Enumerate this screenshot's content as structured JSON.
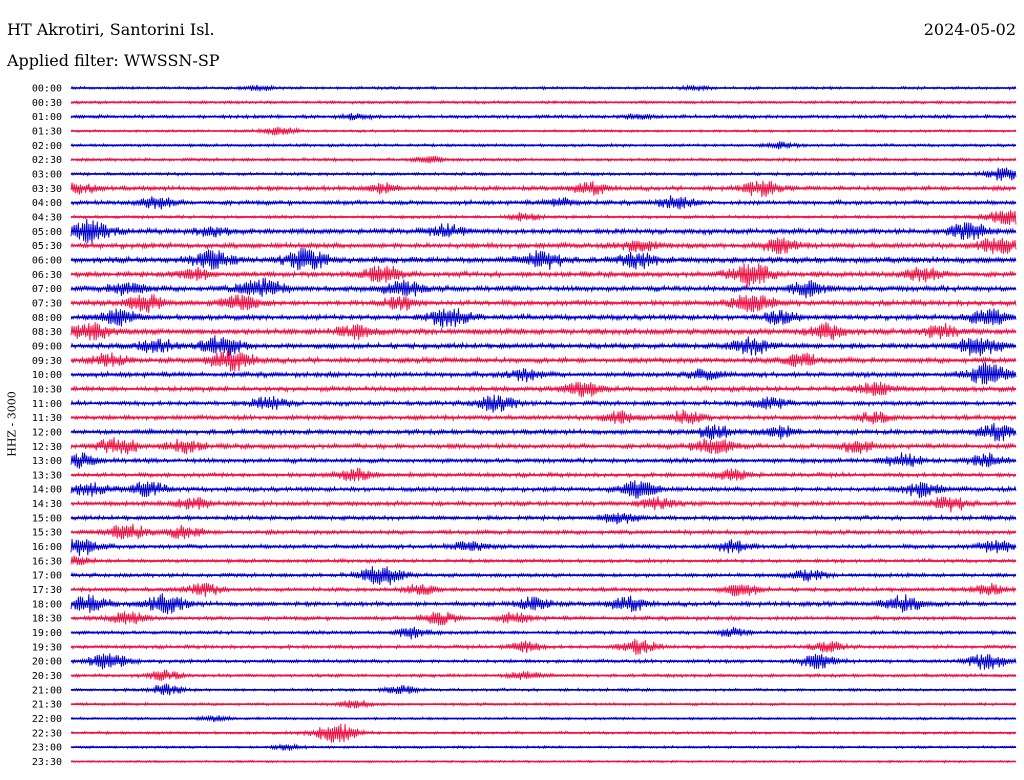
{
  "header": {
    "station": "HT Akrotiri, Santorini Isl.",
    "date": "2024-05-02",
    "filter": "Applied filter: WWSSN-SP"
  },
  "chart_data": {
    "type": "line",
    "title": "HT Akrotiri, Santorini Isl.",
    "ylabel": "HHZ - 3000",
    "xlabel": "",
    "colors": [
      "#0000cc",
      "#ee1144"
    ],
    "row_interval_minutes": 30,
    "rows": [
      {
        "label": "00:00",
        "amp": 1.6,
        "bursts": [
          [
            0.2,
            2.5
          ],
          [
            0.66,
            2.0
          ]
        ]
      },
      {
        "label": "00:30",
        "amp": 1.6,
        "bursts": []
      },
      {
        "label": "01:00",
        "amp": 2.0,
        "bursts": [
          [
            0.3,
            2.5
          ],
          [
            0.6,
            2.0
          ]
        ]
      },
      {
        "label": "01:30",
        "amp": 1.5,
        "bursts": [
          [
            0.22,
            4.0
          ]
        ]
      },
      {
        "label": "02:00",
        "amp": 1.6,
        "bursts": [
          [
            0.75,
            3.0
          ]
        ]
      },
      {
        "label": "02:30",
        "amp": 1.8,
        "bursts": [
          [
            0.38,
            3.0
          ]
        ]
      },
      {
        "label": "03:00",
        "amp": 1.8,
        "bursts": [
          [
            0.99,
            7.0
          ]
        ]
      },
      {
        "label": "03:30",
        "amp": 2.5,
        "bursts": [
          [
            0.01,
            5.0
          ],
          [
            0.33,
            5.0
          ],
          [
            0.55,
            6.0
          ],
          [
            0.73,
            7.0
          ]
        ]
      },
      {
        "label": "04:00",
        "amp": 2.5,
        "bursts": [
          [
            0.09,
            6.0
          ],
          [
            0.52,
            4.0
          ],
          [
            0.64,
            6.0
          ]
        ]
      },
      {
        "label": "04:30",
        "amp": 1.8,
        "bursts": [
          [
            0.48,
            4.0
          ],
          [
            0.99,
            8.0
          ]
        ]
      },
      {
        "label": "05:00",
        "amp": 3.0,
        "bursts": [
          [
            0.02,
            10.0
          ],
          [
            0.4,
            6.0
          ],
          [
            0.15,
            5.0
          ],
          [
            0.95,
            8.0
          ]
        ]
      },
      {
        "label": "05:30",
        "amp": 3.0,
        "bursts": [
          [
            0.6,
            6.0
          ],
          [
            0.75,
            7.0
          ],
          [
            0.98,
            8.0
          ]
        ]
      },
      {
        "label": "06:00",
        "amp": 3.5,
        "bursts": [
          [
            0.15,
            9.0
          ],
          [
            0.25,
            10.0
          ],
          [
            0.5,
            8.0
          ],
          [
            0.6,
            7.0
          ]
        ]
      },
      {
        "label": "06:30",
        "amp": 3.0,
        "bursts": [
          [
            0.13,
            6.0
          ],
          [
            0.33,
            8.0
          ],
          [
            0.72,
            11.0
          ],
          [
            0.9,
            7.0
          ]
        ]
      },
      {
        "label": "07:00",
        "amp": 3.2,
        "bursts": [
          [
            0.06,
            6.0
          ],
          [
            0.2,
            10.0
          ],
          [
            0.35,
            8.0
          ],
          [
            0.78,
            7.0
          ]
        ]
      },
      {
        "label": "07:30",
        "amp": 3.0,
        "bursts": [
          [
            0.08,
            8.0
          ],
          [
            0.18,
            7.0
          ],
          [
            0.35,
            6.0
          ],
          [
            0.72,
            9.0
          ]
        ]
      },
      {
        "label": "08:00",
        "amp": 3.0,
        "bursts": [
          [
            0.05,
            7.0
          ],
          [
            0.4,
            9.0
          ],
          [
            0.75,
            6.0
          ],
          [
            0.97,
            8.0
          ]
        ]
      },
      {
        "label": "08:30",
        "amp": 3.5,
        "bursts": [
          [
            0.02,
            8.0
          ],
          [
            0.3,
            6.0
          ],
          [
            0.8,
            7.0
          ],
          [
            0.92,
            6.0
          ]
        ]
      },
      {
        "label": "09:00",
        "amp": 3.0,
        "bursts": [
          [
            0.09,
            7.0
          ],
          [
            0.16,
            9.0
          ],
          [
            0.72,
            8.0
          ],
          [
            0.96,
            10.0
          ]
        ]
      },
      {
        "label": "09:30",
        "amp": 3.0,
        "bursts": [
          [
            0.04,
            6.0
          ],
          [
            0.17,
            10.0
          ],
          [
            0.77,
            7.0
          ]
        ]
      },
      {
        "label": "10:00",
        "amp": 2.8,
        "bursts": [
          [
            0.48,
            6.0
          ],
          [
            0.67,
            5.0
          ],
          [
            0.97,
            10.0
          ]
        ]
      },
      {
        "label": "10:30",
        "amp": 2.8,
        "bursts": [
          [
            0.54,
            7.0
          ],
          [
            0.85,
            6.0
          ]
        ]
      },
      {
        "label": "11:00",
        "amp": 2.6,
        "bursts": [
          [
            0.21,
            6.0
          ],
          [
            0.45,
            8.0
          ],
          [
            0.74,
            6.0
          ]
        ]
      },
      {
        "label": "11:30",
        "amp": 2.6,
        "bursts": [
          [
            0.58,
            6.0
          ],
          [
            0.65,
            6.0
          ],
          [
            0.85,
            5.0
          ]
        ]
      },
      {
        "label": "12:00",
        "amp": 2.8,
        "bursts": [
          [
            0.68,
            6.0
          ],
          [
            0.75,
            6.0
          ],
          [
            0.98,
            8.0
          ]
        ]
      },
      {
        "label": "12:30",
        "amp": 2.8,
        "bursts": [
          [
            0.05,
            8.0
          ],
          [
            0.12,
            6.0
          ],
          [
            0.68,
            8.0
          ],
          [
            0.83,
            6.0
          ]
        ]
      },
      {
        "label": "13:00",
        "amp": 2.6,
        "bursts": [
          [
            0.01,
            6.0
          ],
          [
            0.88,
            7.0
          ],
          [
            0.97,
            6.0
          ]
        ]
      },
      {
        "label": "13:30",
        "amp": 2.4,
        "bursts": [
          [
            0.3,
            6.0
          ],
          [
            0.7,
            5.0
          ]
        ]
      },
      {
        "label": "14:00",
        "amp": 2.6,
        "bursts": [
          [
            0.02,
            6.0
          ],
          [
            0.08,
            7.0
          ],
          [
            0.6,
            8.0
          ],
          [
            0.9,
            7.0
          ]
        ]
      },
      {
        "label": "14:30",
        "amp": 2.6,
        "bursts": [
          [
            0.13,
            6.0
          ],
          [
            0.62,
            6.0
          ],
          [
            0.93,
            7.0
          ]
        ]
      },
      {
        "label": "15:00",
        "amp": 2.4,
        "bursts": [
          [
            0.58,
            6.0
          ]
        ]
      },
      {
        "label": "15:30",
        "amp": 2.4,
        "bursts": [
          [
            0.06,
            8.0
          ],
          [
            0.12,
            6.0
          ]
        ]
      },
      {
        "label": "16:00",
        "amp": 2.4,
        "bursts": [
          [
            0.01,
            8.0
          ],
          [
            0.42,
            5.0
          ],
          [
            0.7,
            6.0
          ],
          [
            0.98,
            6.0
          ]
        ]
      },
      {
        "label": "16:30",
        "amp": 2.0,
        "bursts": [
          [
            0.0,
            6.0
          ]
        ]
      },
      {
        "label": "17:00",
        "amp": 2.2,
        "bursts": [
          [
            0.33,
            10.0
          ],
          [
            0.78,
            5.0
          ]
        ]
      },
      {
        "label": "17:30",
        "amp": 2.2,
        "bursts": [
          [
            0.14,
            6.0
          ],
          [
            0.37,
            5.0
          ],
          [
            0.71,
            6.0
          ],
          [
            0.97,
            5.0
          ]
        ]
      },
      {
        "label": "18:00",
        "amp": 2.6,
        "bursts": [
          [
            0.02,
            8.0
          ],
          [
            0.1,
            9.0
          ],
          [
            0.49,
            6.0
          ],
          [
            0.59,
            7.0
          ],
          [
            0.88,
            8.0
          ]
        ]
      },
      {
        "label": "18:30",
        "amp": 2.2,
        "bursts": [
          [
            0.06,
            6.0
          ],
          [
            0.39,
            6.0
          ],
          [
            0.47,
            5.0
          ]
        ]
      },
      {
        "label": "19:00",
        "amp": 2.0,
        "bursts": [
          [
            0.36,
            5.0
          ],
          [
            0.7,
            4.0
          ]
        ]
      },
      {
        "label": "19:30",
        "amp": 2.0,
        "bursts": [
          [
            0.48,
            5.0
          ],
          [
            0.6,
            7.0
          ],
          [
            0.8,
            5.0
          ]
        ]
      },
      {
        "label": "20:00",
        "amp": 2.0,
        "bursts": [
          [
            0.04,
            8.0
          ],
          [
            0.79,
            7.0
          ],
          [
            0.97,
            8.0
          ]
        ]
      },
      {
        "label": "20:30",
        "amp": 1.8,
        "bursts": [
          [
            0.1,
            5.0
          ],
          [
            0.48,
            4.0
          ]
        ]
      },
      {
        "label": "21:00",
        "amp": 1.6,
        "bursts": [
          [
            0.1,
            5.0
          ],
          [
            0.35,
            4.0
          ]
        ]
      },
      {
        "label": "21:30",
        "amp": 1.5,
        "bursts": [
          [
            0.3,
            4.0
          ]
        ]
      },
      {
        "label": "22:00",
        "amp": 1.4,
        "bursts": [
          [
            0.15,
            3.0
          ]
        ]
      },
      {
        "label": "22:30",
        "amp": 1.5,
        "bursts": [
          [
            0.28,
            10.0
          ]
        ]
      },
      {
        "label": "23:00",
        "amp": 1.4,
        "bursts": [
          [
            0.23,
            3.0
          ]
        ]
      },
      {
        "label": "23:30",
        "amp": 1.2,
        "bursts": []
      }
    ]
  }
}
